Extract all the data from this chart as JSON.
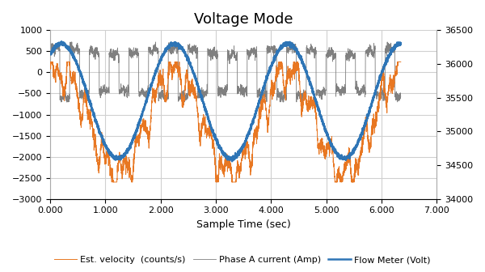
{
  "title": "Voltage Mode",
  "xlabel": "Sample Time (sec)",
  "xlim": [
    0.0,
    7.0
  ],
  "ylim_left": [
    -3000,
    1000
  ],
  "ylim_right": [
    34000,
    36500
  ],
  "yticks_left": [
    -3000,
    -2500,
    -2000,
    -1500,
    -1000,
    -500,
    0,
    500,
    1000
  ],
  "yticks_right": [
    34000,
    34500,
    35000,
    35500,
    36000,
    36500
  ],
  "xticks": [
    0.0,
    1.0,
    2.0,
    3.0,
    4.0,
    5.0,
    6.0,
    7.0
  ],
  "xtick_labels": [
    "0.000",
    "1.000",
    "2.000",
    "3.000",
    "4.000",
    "5.000",
    "6.000",
    "7.000"
  ],
  "legend_labels": [
    "Est. velocity  (counts/s)",
    "Phase A current (Amp)",
    "Flow Meter (Volt)"
  ],
  "color_velocity": "#E87722",
  "color_phase": "#808080",
  "color_flow": "#2E75B6",
  "background_color": "#FFFFFF",
  "title_fontsize": 13,
  "label_fontsize": 9,
  "tick_fontsize": 8,
  "legend_fontsize": 8,
  "grid_color": "#D0D0D0",
  "period": 2.05,
  "num_points": 3000,
  "t_end": 6.35
}
